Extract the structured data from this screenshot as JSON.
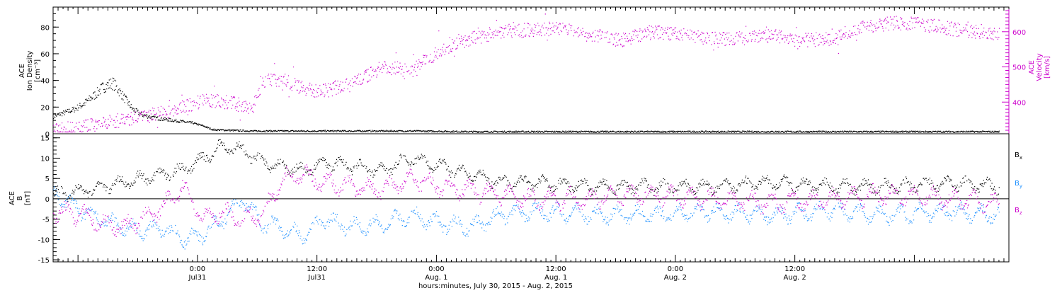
{
  "chart_data": [
    {
      "type": "scatter",
      "panel": "top",
      "ylabel_left": [
        "ACE",
        "Ion Density",
        "[cm⁻³]"
      ],
      "ylabel_right": [
        "ACE",
        "Velocity",
        "[km/s]"
      ],
      "ylim_left": [
        0,
        95
      ],
      "ylim_right": [
        310,
        670
      ],
      "yticks_left": [
        0,
        20,
        40,
        60,
        80
      ],
      "yticks_right": [
        400,
        500,
        600
      ],
      "colors": {
        "density": "#000000",
        "velocity": "#cc00cc"
      },
      "series": [
        {
          "axis": "left",
          "hours": [
            0,
            2,
            3,
            4,
            5,
            6,
            7,
            8,
            9,
            10,
            11,
            12,
            13,
            14,
            15,
            16,
            18,
            20,
            24,
            30,
            36,
            42,
            48,
            54,
            60,
            66,
            72,
            78,
            84,
            90,
            95
          ],
          "values": [
            13,
            18,
            22,
            28,
            35,
            38,
            28,
            18,
            14,
            12,
            11,
            10,
            9,
            8,
            6,
            3,
            2.5,
            2,
            2,
            2,
            2,
            1.5,
            1.5,
            1.5,
            1.5,
            1.5,
            1.5,
            1.5,
            1.5,
            1.5,
            1.5
          ]
        },
        {
          "axis": "right",
          "hours": [
            0,
            3,
            6,
            9,
            12,
            15,
            18,
            20,
            21,
            23,
            25,
            27,
            30,
            33,
            36,
            39,
            42,
            45,
            48,
            51,
            54,
            57,
            60,
            63,
            66,
            69,
            72,
            75,
            78,
            81,
            84,
            87,
            90,
            93,
            95
          ],
          "values": [
            320,
            330,
            345,
            358,
            375,
            405,
            398,
            380,
            460,
            465,
            440,
            430,
            450,
            500,
            490,
            550,
            580,
            600,
            605,
            610,
            590,
            575,
            600,
            590,
            580,
            580,
            590,
            575,
            580,
            610,
            625,
            620,
            610,
            600,
            595
          ]
        }
      ]
    },
    {
      "type": "scatter",
      "panel": "bottom",
      "ylabel_left": [
        "ACE",
        "B",
        "[nT]"
      ],
      "ylim": [
        -15.5,
        16
      ],
      "yticks": [
        -15,
        -10,
        -5,
        0,
        5,
        10,
        15
      ],
      "colors": {
        "Bx": "#000000",
        "By": "#1e90ff",
        "Bz": "#cc00cc"
      },
      "series": [
        {
          "name": "B_x",
          "hours": [
            0,
            3,
            5,
            7,
            9,
            11,
            13,
            15,
            17,
            19,
            21,
            23,
            25,
            27,
            30,
            33,
            36,
            39,
            42,
            45,
            48,
            54,
            60,
            66,
            72,
            78,
            84,
            90,
            95
          ],
          "values": [
            1,
            2,
            3,
            4,
            5,
            6,
            7,
            10,
            13,
            12,
            9,
            8,
            7,
            9,
            8,
            7,
            10,
            8,
            6,
            4,
            4,
            3,
            3,
            3,
            4,
            3,
            3,
            4,
            3
          ]
        },
        {
          "name": "B_y",
          "hours": [
            0,
            3,
            5,
            7,
            9,
            11,
            13,
            15,
            17,
            19,
            21,
            23,
            25,
            27,
            30,
            33,
            36,
            39,
            42,
            45,
            48,
            54,
            60,
            66,
            72,
            78,
            84,
            90,
            95
          ],
          "values": [
            1,
            -3,
            -5,
            -7,
            -8,
            -7,
            -10,
            -9,
            -5,
            0,
            -6,
            -7,
            -9,
            -5,
            -7,
            -6,
            -4,
            -6,
            -7,
            -4,
            -3,
            -4,
            -4,
            -3,
            -4,
            -3,
            -4,
            -3,
            -4
          ]
        },
        {
          "name": "B_z",
          "hours": [
            0,
            3,
            5,
            7,
            9,
            11,
            13,
            15,
            17,
            19,
            21,
            23,
            25,
            27,
            30,
            33,
            36,
            39,
            42,
            45,
            48,
            54,
            60,
            66,
            72,
            78,
            84,
            90,
            95
          ],
          "values": [
            -3,
            -4,
            -6,
            -7,
            -5,
            -2,
            3,
            -5,
            -3,
            -5,
            -4,
            5,
            6,
            4,
            3,
            2,
            5,
            3,
            2,
            1,
            0,
            0,
            1,
            0,
            -1,
            0,
            1,
            0,
            -1
          ]
        }
      ],
      "legend": [
        "B",
        "B",
        "B"
      ],
      "legend_subscripts": [
        "x",
        "y",
        "z"
      ]
    }
  ],
  "x_axis": {
    "label": "hours:minutes, July 30, 2015 - Aug.  2, 2015",
    "range_hours": [
      0,
      96
    ],
    "major_ticks": [
      {
        "hour": 14.5,
        "line1": "0:00",
        "line2": "Jul31"
      },
      {
        "hour": 26.5,
        "line1": "12:00",
        "line2": "Jul31"
      },
      {
        "hour": 38.5,
        "line1": "0:00",
        "line2": "Aug. 1"
      },
      {
        "hour": 50.5,
        "line1": "12:00",
        "line2": "Aug. 1"
      },
      {
        "hour": 62.5,
        "line1": "0:00",
        "line2": "Aug. 2"
      },
      {
        "hour": 74.5,
        "line1": "12:00",
        "line2": "Aug. 2"
      }
    ]
  }
}
